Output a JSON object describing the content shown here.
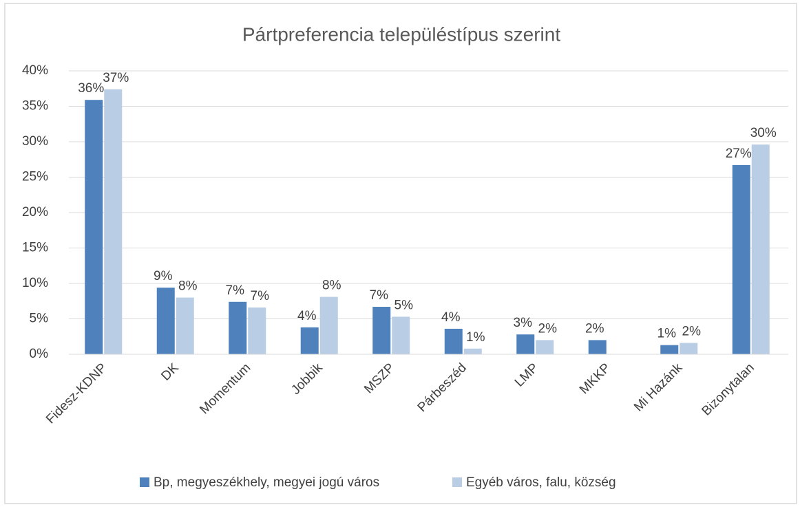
{
  "chart_data": {
    "type": "bar",
    "title": "Pártpreferencia településtípus szerint",
    "categories": [
      "Fidesz-KDNP",
      "DK",
      "Momentum",
      "Jobbik",
      "MSZP",
      "Párbeszéd",
      "LMP",
      "MKKP",
      "Mi Hazánk",
      "Bizonytalan"
    ],
    "series": [
      {
        "name": "Bp, megyeszékhely, megyei jogú város",
        "color": "#4f81bd",
        "values": [
          35.9,
          9.4,
          7.4,
          3.8,
          6.7,
          3.6,
          2.8,
          2.0,
          1.3,
          26.7
        ],
        "value_labels": [
          "36%",
          "9%",
          "7%",
          "4%",
          "7%",
          "4%",
          "3%",
          "2%",
          "1%",
          "27%"
        ]
      },
      {
        "name": "Egyéb város, falu, község",
        "color": "#b9cde5",
        "values": [
          37.4,
          8.0,
          6.6,
          8.1,
          5.3,
          0.8,
          2.0,
          null,
          1.6,
          29.6
        ],
        "value_labels": [
          "37%",
          "8%",
          "7%",
          "8%",
          "5%",
          "1%",
          "2%",
          null,
          "2%",
          "30%"
        ]
      }
    ],
    "ylim": [
      0,
      40
    ],
    "yticks": [
      {
        "value": 0,
        "label": "0%"
      },
      {
        "value": 5,
        "label": "5%"
      },
      {
        "value": 10,
        "label": "10%"
      },
      {
        "value": 15,
        "label": "15%"
      },
      {
        "value": 20,
        "label": "20%"
      },
      {
        "value": 25,
        "label": "25%"
      },
      {
        "value": 30,
        "label": "30%"
      },
      {
        "value": 35,
        "label": "35%"
      },
      {
        "value": 40,
        "label": "40%"
      }
    ],
    "grid": true,
    "legend": "bottom"
  }
}
